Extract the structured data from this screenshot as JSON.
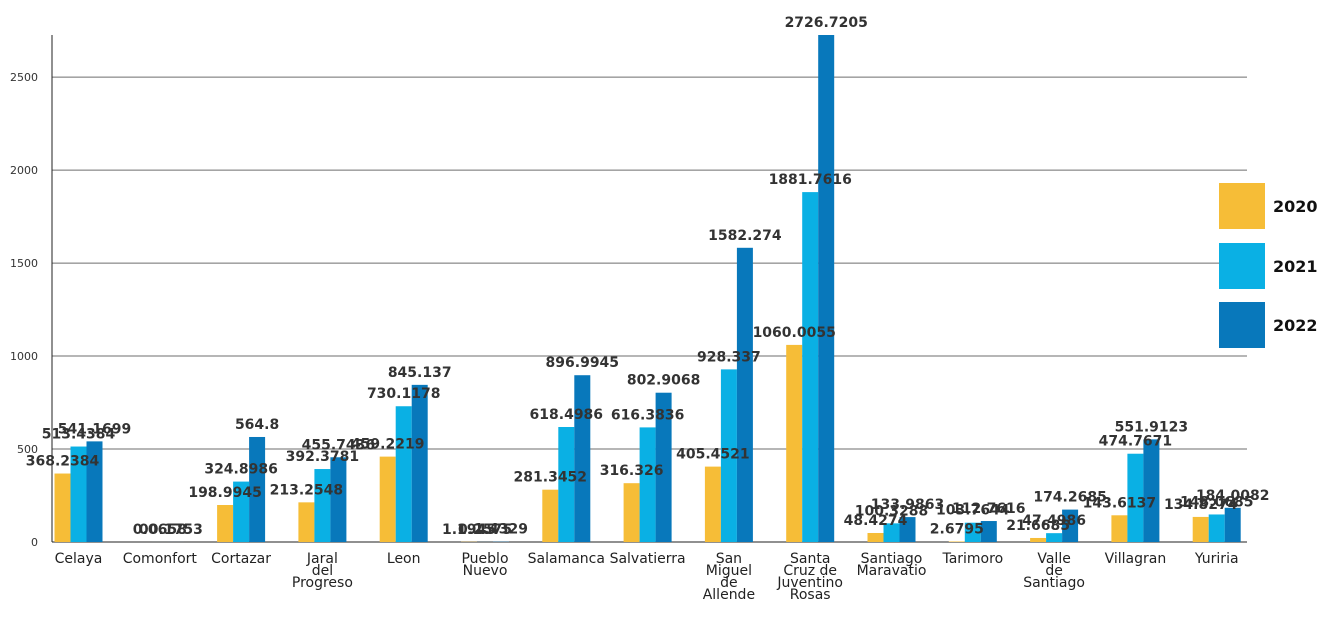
{
  "chart_data": {
    "type": "bar",
    "title": "",
    "xlabel": "",
    "ylabel": "",
    "ylim": [
      0,
      2726.7205
    ],
    "yticks": [
      0,
      500,
      1000,
      1500,
      2000,
      2500
    ],
    "grid": true,
    "legend_position": "right",
    "categories": [
      "Celaya",
      "Comonfort",
      "Cortazar",
      "Jaral del Progreso",
      "Leon",
      "Pueblo Nuevo",
      "Salamanca",
      "Salvatierra",
      "San Miguel de Allende",
      "Santa Cruz de Juventino Rosas",
      "Santiago Maravatio",
      "Tarimoro",
      "Valle de Santiago",
      "Villagran",
      "Yuriria"
    ],
    "series": [
      {
        "name": "2020",
        "color": "#f6bd37",
        "values": [
          368.2384,
          0,
          198.9945,
          213.2548,
          459.2219,
          1.1945,
          281.3452,
          316.326,
          405.4521,
          1060.0055,
          48.4274,
          2.6795,
          21.6685,
          143.6137,
          134.8274
        ]
      },
      {
        "name": "2021",
        "color": "#0ab0e4",
        "values": [
          513.4384,
          0.0658,
          324.8986,
          392.3781,
          730.1178,
          0.2575,
          618.4986,
          616.3836,
          928.337,
          1881.7616,
          100.3288,
          103.7644,
          47.4986,
          474.7671,
          148.0685
        ]
      },
      {
        "name": "2022",
        "color": "#0878bb",
        "values": [
          541.1699,
          0.1753,
          564.8,
          455.7436,
          845.137,
          1.4329,
          896.9945,
          802.9068,
          1582.274,
          2726.7205,
          133.9863,
          112.7616,
          174.2685,
          551.9123,
          184.0082
        ]
      }
    ]
  }
}
